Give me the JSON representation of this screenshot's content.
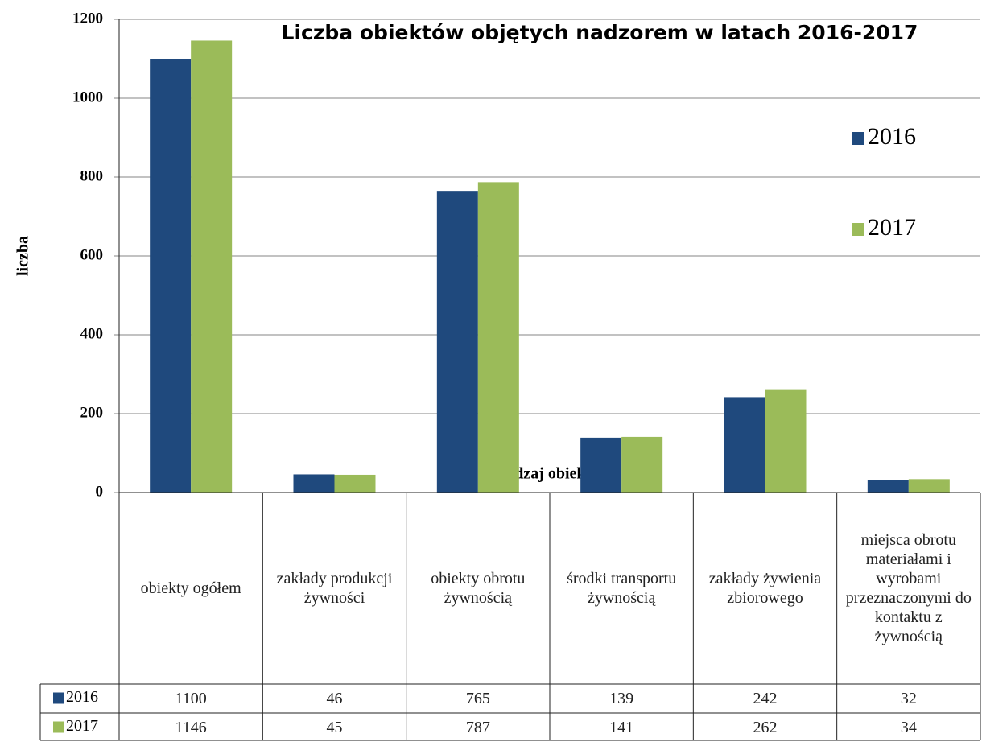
{
  "chart_data": {
    "type": "bar",
    "title": "Liczba obiektów objętych nadzorem w latach 2016-2017",
    "x_label": "rodzaj obiektu",
    "y_label": "liczba",
    "categories": [
      "obiekty ogółem",
      "zakłady produkcji żywności",
      "obiekty obrotu żywnością",
      "środki transportu żywnością",
      "zakłady żywienia zbiorowego",
      "miejsca obrotu materiałami i wyrobami przeznaczonymi do kontaktu z żywnością"
    ],
    "series": [
      {
        "name": "2016",
        "color": "#1f497d",
        "values": [
          1100,
          46,
          765,
          139,
          242,
          32
        ]
      },
      {
        "name": "2017",
        "color": "#9bbb59",
        "values": [
          1146,
          45,
          787,
          141,
          262,
          34
        ]
      }
    ],
    "ylim": [
      0,
      1200
    ],
    "yticks": [
      0,
      200,
      400,
      600,
      800,
      1000,
      1200
    ],
    "grid": true,
    "legend": "right"
  }
}
